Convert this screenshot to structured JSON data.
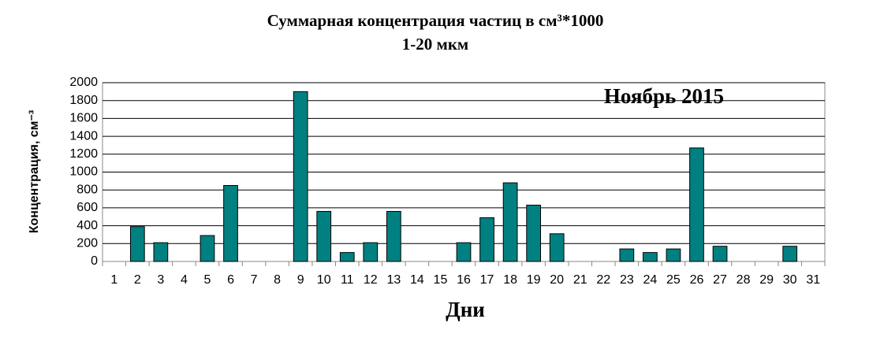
{
  "chart_data": {
    "type": "bar",
    "title": "Суммарная концентрация частиц в см³*1000",
    "subtitle": "1-20 мкм",
    "annotation": "Ноябрь 2015",
    "y_label": "Концентрация, см⁻³",
    "x_label": "Дни",
    "categories": [
      "1",
      "2",
      "3",
      "4",
      "5",
      "6",
      "7",
      "8",
      "9",
      "10",
      "11",
      "12",
      "13",
      "14",
      "15",
      "16",
      "17",
      "18",
      "19",
      "20",
      "21",
      "22",
      "23",
      "24",
      "25",
      "26",
      "27",
      "28",
      "29",
      "30",
      "31"
    ],
    "values": [
      null,
      390,
      210,
      null,
      290,
      850,
      null,
      null,
      1900,
      560,
      100,
      210,
      560,
      null,
      null,
      210,
      490,
      880,
      630,
      310,
      null,
      null,
      140,
      100,
      140,
      1270,
      170,
      null,
      null,
      170,
      null
    ],
    "color": "#008080",
    "ylim": [
      0,
      2000
    ],
    "yticks": [
      0,
      200,
      400,
      600,
      800,
      1000,
      1200,
      1400,
      1600,
      1800,
      2000
    ],
    "grid": true
  }
}
